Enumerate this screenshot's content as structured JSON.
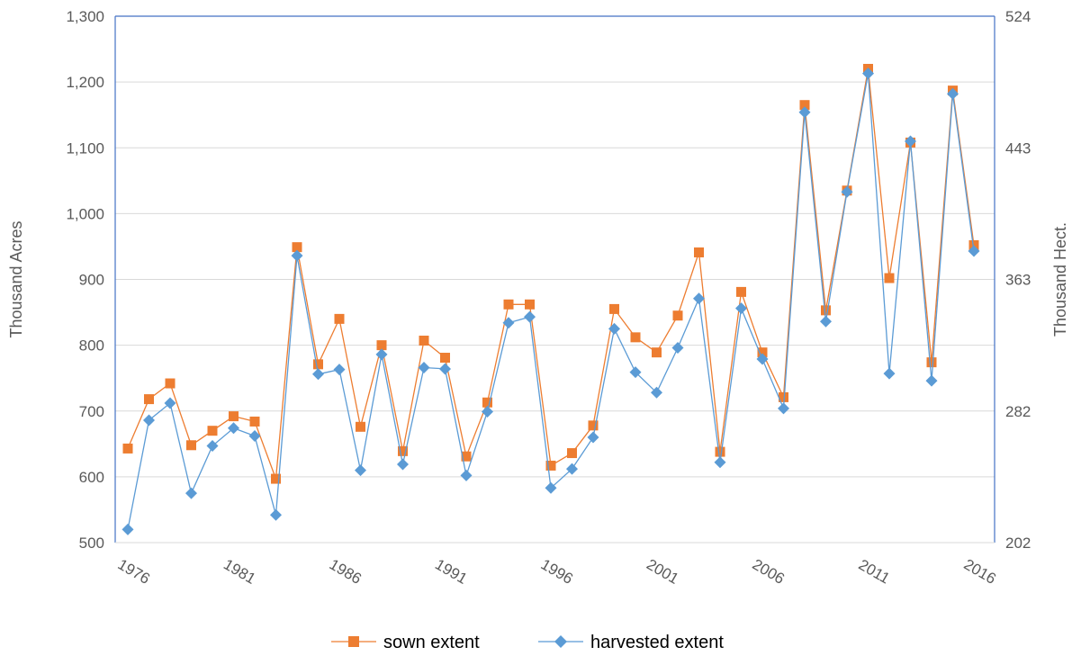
{
  "chart_data": {
    "type": "line",
    "x": [
      1976,
      1977,
      1978,
      1979,
      1980,
      1981,
      1982,
      1983,
      1984,
      1985,
      1986,
      1987,
      1988,
      1989,
      1990,
      1991,
      1992,
      1993,
      1994,
      1995,
      1996,
      1997,
      1998,
      1999,
      2000,
      2001,
      2002,
      2003,
      2004,
      2005,
      2006,
      2007,
      2008,
      2009,
      2010,
      2011,
      2012,
      2013,
      2014,
      2015,
      2016
    ],
    "x_tick_labels": [
      "1976",
      "1981",
      "1986",
      "1991",
      "1996",
      "2001",
      "2006",
      "2011",
      "2016"
    ],
    "x_tick_values": [
      1976,
      1981,
      1986,
      1991,
      1996,
      2001,
      2006,
      2011,
      2016
    ],
    "ylabel": "Thousand Acres",
    "y2label": "Thousand Hect.",
    "ylim": [
      500,
      1300
    ],
    "y_ticks": [
      500,
      600,
      700,
      800,
      900,
      1000,
      1100,
      1200,
      1300
    ],
    "y_tick_labels": [
      "500",
      "600",
      "700",
      "800",
      "900",
      "1,000",
      "1,100",
      "1,200",
      "1,300"
    ],
    "y2_tick_labels": [
      "202",
      "282",
      "363",
      "443",
      "524"
    ],
    "y2_tick_values": [
      500,
      700,
      900,
      1100,
      1300
    ],
    "grid": true,
    "legend_position": "bottom",
    "series": [
      {
        "name": "sown extent",
        "color": "#ED7D31",
        "marker": "square",
        "values": [
          643,
          718,
          742,
          648,
          670,
          692,
          684,
          597,
          949,
          771,
          840,
          676,
          800,
          639,
          807,
          781,
          631,
          713,
          862,
          862,
          617,
          636,
          678,
          855,
          812,
          789,
          845,
          941,
          638,
          881,
          789,
          721,
          1165,
          853,
          1035,
          1220,
          902,
          1108,
          774,
          1187,
          952
        ]
      },
      {
        "name": "harvested extent",
        "color": "#5B9BD5",
        "marker": "diamond",
        "values": [
          520,
          686,
          712,
          575,
          647,
          674,
          662,
          542,
          936,
          756,
          763,
          610,
          786,
          619,
          766,
          764,
          602,
          699,
          834,
          843,
          583,
          612,
          660,
          825,
          759,
          728,
          796,
          871,
          622,
          856,
          779,
          704,
          1154,
          836,
          1033,
          1213,
          757,
          1110,
          746,
          1182,
          943
        ]
      }
    ]
  }
}
